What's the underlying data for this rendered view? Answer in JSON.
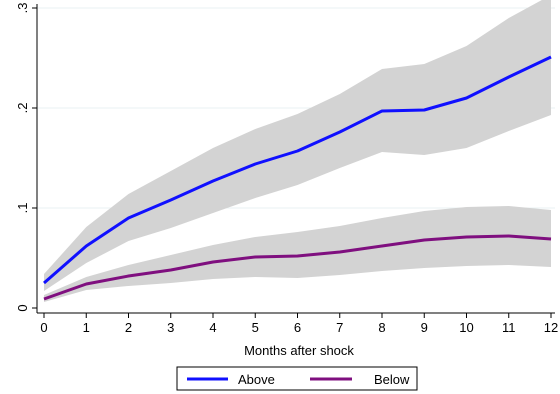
{
  "chart_data": {
    "type": "line",
    "title": "",
    "xlabel": "Months after shock",
    "ylabel": "",
    "xlim": [
      0,
      12
    ],
    "ylim": [
      0,
      0.3
    ],
    "x": [
      0,
      1,
      2,
      3,
      4,
      5,
      6,
      7,
      8,
      9,
      10,
      11,
      12
    ],
    "x_tick_labels": [
      "0",
      "1",
      "2",
      "3",
      "4",
      "5",
      "6",
      "7",
      "8",
      "9",
      "10",
      "11",
      "12"
    ],
    "y_ticks": [
      0,
      0.1,
      0.2,
      0.3
    ],
    "y_tick_labels": [
      "0",
      ".1",
      ".2",
      ".3"
    ],
    "grid": "horizontal",
    "legend_position": "bottom",
    "series": [
      {
        "name": "Above",
        "color": "#1010ff",
        "values": [
          0.025,
          0.062,
          0.09,
          0.108,
          0.127,
          0.144,
          0.157,
          0.176,
          0.197,
          0.198,
          0.21,
          0.231,
          0.251
        ],
        "ci_lower": [
          0.017,
          0.045,
          0.067,
          0.08,
          0.095,
          0.11,
          0.123,
          0.14,
          0.156,
          0.153,
          0.16,
          0.177,
          0.193
        ],
        "ci_upper": [
          0.034,
          0.081,
          0.114,
          0.137,
          0.16,
          0.179,
          0.194,
          0.214,
          0.239,
          0.244,
          0.262,
          0.29,
          0.313
        ]
      },
      {
        "name": "Below",
        "color": "#7f0f7f",
        "values": [
          0.009,
          0.024,
          0.032,
          0.038,
          0.046,
          0.051,
          0.052,
          0.056,
          0.062,
          0.068,
          0.071,
          0.072,
          0.069
        ],
        "ci_lower": [
          0.006,
          0.018,
          0.022,
          0.025,
          0.029,
          0.031,
          0.03,
          0.033,
          0.037,
          0.04,
          0.042,
          0.043,
          0.041
        ],
        "ci_upper": [
          0.013,
          0.031,
          0.043,
          0.053,
          0.063,
          0.071,
          0.076,
          0.082,
          0.09,
          0.097,
          0.101,
          0.102,
          0.098
        ]
      }
    ],
    "band_color": "#d3d3d3",
    "grid_color": "#eaf2f3"
  }
}
